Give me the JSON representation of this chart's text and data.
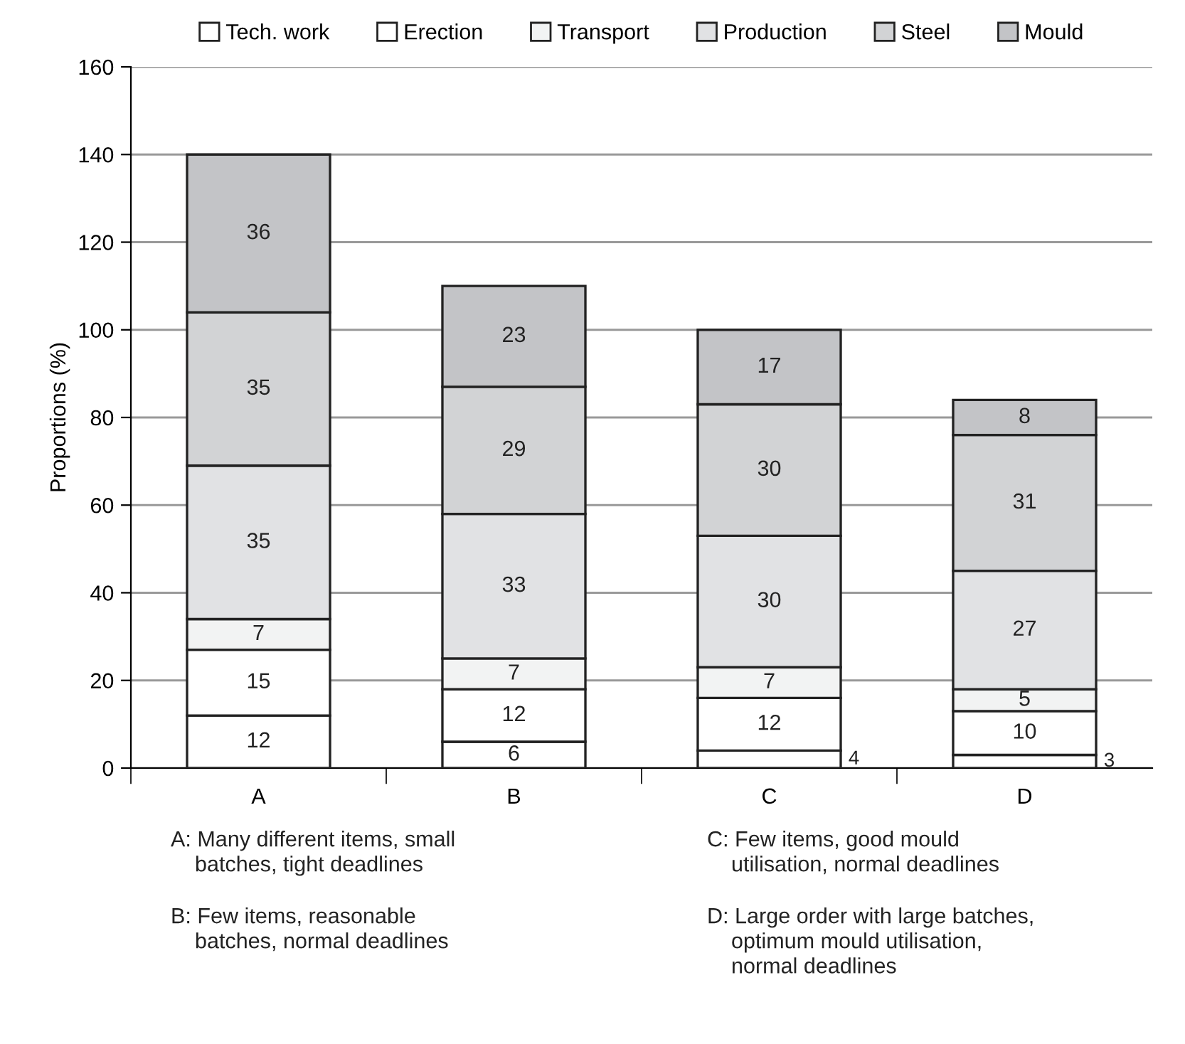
{
  "chart_data": {
    "type": "bar",
    "stacked": true,
    "ylabel": "Proportions (%)",
    "categories": [
      "A",
      "B",
      "C",
      "D"
    ],
    "series": [
      {
        "name": "Tech. work",
        "color": "#ffffff",
        "values": [
          12,
          6,
          4,
          3
        ]
      },
      {
        "name": "Erection",
        "color": "#ffffff",
        "values": [
          15,
          12,
          12,
          10
        ]
      },
      {
        "name": "Transport",
        "color": "#f2f3f3",
        "values": [
          7,
          7,
          7,
          5
        ]
      },
      {
        "name": "Production",
        "color": "#e1e2e4",
        "values": [
          35,
          33,
          30,
          27
        ]
      },
      {
        "name": "Steel",
        "color": "#d2d3d5",
        "values": [
          35,
          29,
          30,
          31
        ]
      },
      {
        "name": "Mould",
        "color": "#c3c4c7",
        "values": [
          36,
          23,
          17,
          8
        ]
      }
    ],
    "ylim": [
      0,
      160
    ],
    "yticks": [
      0,
      20,
      40,
      60,
      80,
      100,
      120,
      140,
      160
    ],
    "grid": "y",
    "legend": "top",
    "data_labels": true,
    "annotations": [
      "A: Many different items, small\n    batches, tight deadlines",
      "C: Few items, good mould\n    utilisation, normal deadlines",
      "B: Few items, reasonable\n    batches, normal deadlines",
      "D: Large order with large batches,\n    optimum mould utilisation,\n    normal deadlines"
    ]
  }
}
